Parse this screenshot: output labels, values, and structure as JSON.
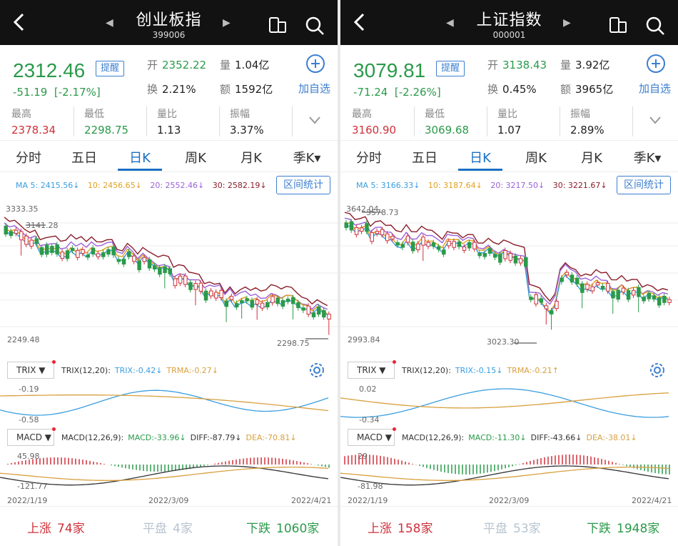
{
  "panels": [
    {
      "title": "创业板指",
      "code": "399006",
      "price": "2312.46",
      "change": "-51.19",
      "change_pct": "[-2.17%]",
      "remind_label": "提醒",
      "open_label": "开",
      "open_value": "2352.22",
      "volume_label": "量",
      "volume_value": "1.04亿",
      "turnover_label": "换",
      "turnover_value": "2.21%",
      "amount_label": "额",
      "amount_value": "1592亿",
      "add_watch_label": "加自选",
      "stats": [
        {
          "label": "最高",
          "value": "2378.34",
          "tone": "r"
        },
        {
          "label": "最低",
          "value": "2298.75",
          "tone": "g"
        },
        {
          "label": "量比",
          "value": "1.13",
          "tone": ""
        },
        {
          "label": "振幅",
          "value": "3.37%",
          "tone": ""
        }
      ],
      "tabs": [
        "分时",
        "五日",
        "日K",
        "周K",
        "月K",
        "季K"
      ],
      "active_tab": "日K",
      "ma": {
        "ma5": "MA 5: 2415.56↓",
        "ma10": "10: 2456.65↓",
        "ma20": "20: 2552.46↓",
        "ma30": "30: 2582.19↓"
      },
      "range_stats_label": "区间统计",
      "chart_labels": {
        "top": "3333.35",
        "marker_high": "3141.28",
        "bottom": "2249.48",
        "marker_low": "2298.75"
      },
      "trix": {
        "btn": "TRIX",
        "params": "TRIX(12,20):",
        "trix": "TRIX:-0.42↓",
        "trma": "TRMA:-0.27↓",
        "top": "-0.19",
        "bottom": "-0.58"
      },
      "macd": {
        "btn": "MACD",
        "params": "MACD(12,26,9):",
        "macd": "MACD:-33.96↓",
        "diff": "DIFF:-87.79↓",
        "dea": "DEA:-70.81↓",
        "top": "45.98",
        "bottom": "-121.77"
      },
      "dates": [
        "2022/1/19",
        "2022/3/09",
        "2022/4/21"
      ],
      "bottom": {
        "up_label": "上涨",
        "up": "74家",
        "flat_label": "平盘",
        "flat": "4家",
        "down_label": "下跌",
        "down": "1060家"
      }
    },
    {
      "title": "上证指数",
      "code": "000001",
      "price": "3079.81",
      "change": "-71.24",
      "change_pct": "[-2.26%]",
      "remind_label": "提醒",
      "open_label": "开",
      "open_value": "3138.43",
      "volume_label": "量",
      "volume_value": "3.92亿",
      "turnover_label": "换",
      "turnover_value": "0.45%",
      "amount_label": "额",
      "amount_value": "3965亿",
      "add_watch_label": "加自选",
      "stats": [
        {
          "label": "最高",
          "value": "3160.90",
          "tone": "r"
        },
        {
          "label": "最低",
          "value": "3069.68",
          "tone": "g"
        },
        {
          "label": "量比",
          "value": "1.07",
          "tone": ""
        },
        {
          "label": "振幅",
          "value": "2.89%",
          "tone": ""
        }
      ],
      "tabs": [
        "分时",
        "五日",
        "日K",
        "周K",
        "月K",
        "季K"
      ],
      "active_tab": "日K",
      "ma": {
        "ma5": "MA 5: 3166.33↓",
        "ma10": "10: 3187.64↓",
        "ma20": "20: 3217.50↓",
        "ma30": "30: 3221.67↓"
      },
      "range_stats_label": "区间统计",
      "chart_labels": {
        "top": "3642.04",
        "marker_high": "3578.73",
        "bottom": "2993.84",
        "marker_low": "3023.30"
      },
      "trix": {
        "btn": "TRIX",
        "params": "TRIX(12,20):",
        "trix": "TRIX:-0.15↓",
        "trma": "TRMA:-0.21↑",
        "top": "0.02",
        "bottom": "-0.34"
      },
      "macd": {
        "btn": "MACD",
        "params": "MACD(12,26,9):",
        "macd": "MACD:-11.30↓",
        "diff": "DIFF:-43.66↓",
        "dea": "DEA:-38.01↓",
        "top": "29",
        "bottom": "-81.98"
      },
      "dates": [
        "2022/1/19",
        "2022/3/09",
        "2022/4/21"
      ],
      "bottom": {
        "up_label": "上涨",
        "up": "158家",
        "flat_label": "平盘",
        "flat": "53家",
        "down_label": "下跌",
        "down": "1948家"
      }
    }
  ],
  "colors": {
    "up": "#d0303a",
    "down": "#2a9a4a",
    "accent": "#1a6fc4",
    "ma5": "#3a9ee0",
    "ma10": "#e0a020",
    "ma20": "#9a62d8",
    "ma30": "#8a1e2a"
  }
}
